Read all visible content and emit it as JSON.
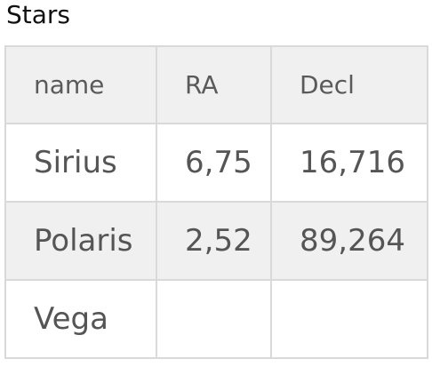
{
  "title": "Stars",
  "table": {
    "headers": [
      "name",
      "RA",
      "Decl"
    ],
    "rows": [
      [
        "Sirius",
        "6,75",
        "16,716"
      ],
      [
        "Polaris",
        "2,52",
        "89,264"
      ],
      [
        "Vega",
        "",
        ""
      ]
    ]
  }
}
